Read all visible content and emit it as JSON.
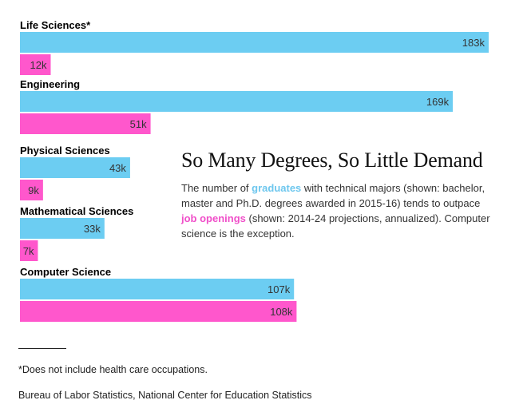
{
  "chart_data": {
    "type": "bar",
    "orientation": "horizontal",
    "title": "So Many Degrees, So Little Demand",
    "categories": [
      "Life Sciences*",
      "Engineering",
      "Physical Sciences",
      "Mathematical Sciences",
      "Computer Science"
    ],
    "series": [
      {
        "name": "graduates",
        "color": "#6ccdf2",
        "values": [
          183,
          169,
          43,
          33,
          107
        ],
        "labels": [
          "183k",
          "169k",
          "43k",
          "33k",
          "107k"
        ]
      },
      {
        "name": "job openings",
        "color": "#ff57cc",
        "values": [
          12,
          51,
          9,
          7,
          108
        ],
        "labels": [
          "12k",
          "51k",
          "9k",
          "7k",
          "108k"
        ]
      }
    ],
    "units": "thousands",
    "xlim": [
      0,
      183
    ],
    "grid": false,
    "legend": "none"
  },
  "text": {
    "headline": "So Many Degrees, So Little Demand",
    "dek_1": "The number of ",
    "dek_graduates": "graduates",
    "dek_2": " with technical majors (shown: bachelor, master and Ph.D. degrees awarded in 2015-16) tends to outpace ",
    "dek_jobs": "job openings",
    "dek_3": " (shown: 2014-24 projections, annualized). Computer science is the exception.",
    "footnote": "*Does not include health care occupations.",
    "source": "Bureau of Labor Statistics, National Center for Education Statistics"
  }
}
